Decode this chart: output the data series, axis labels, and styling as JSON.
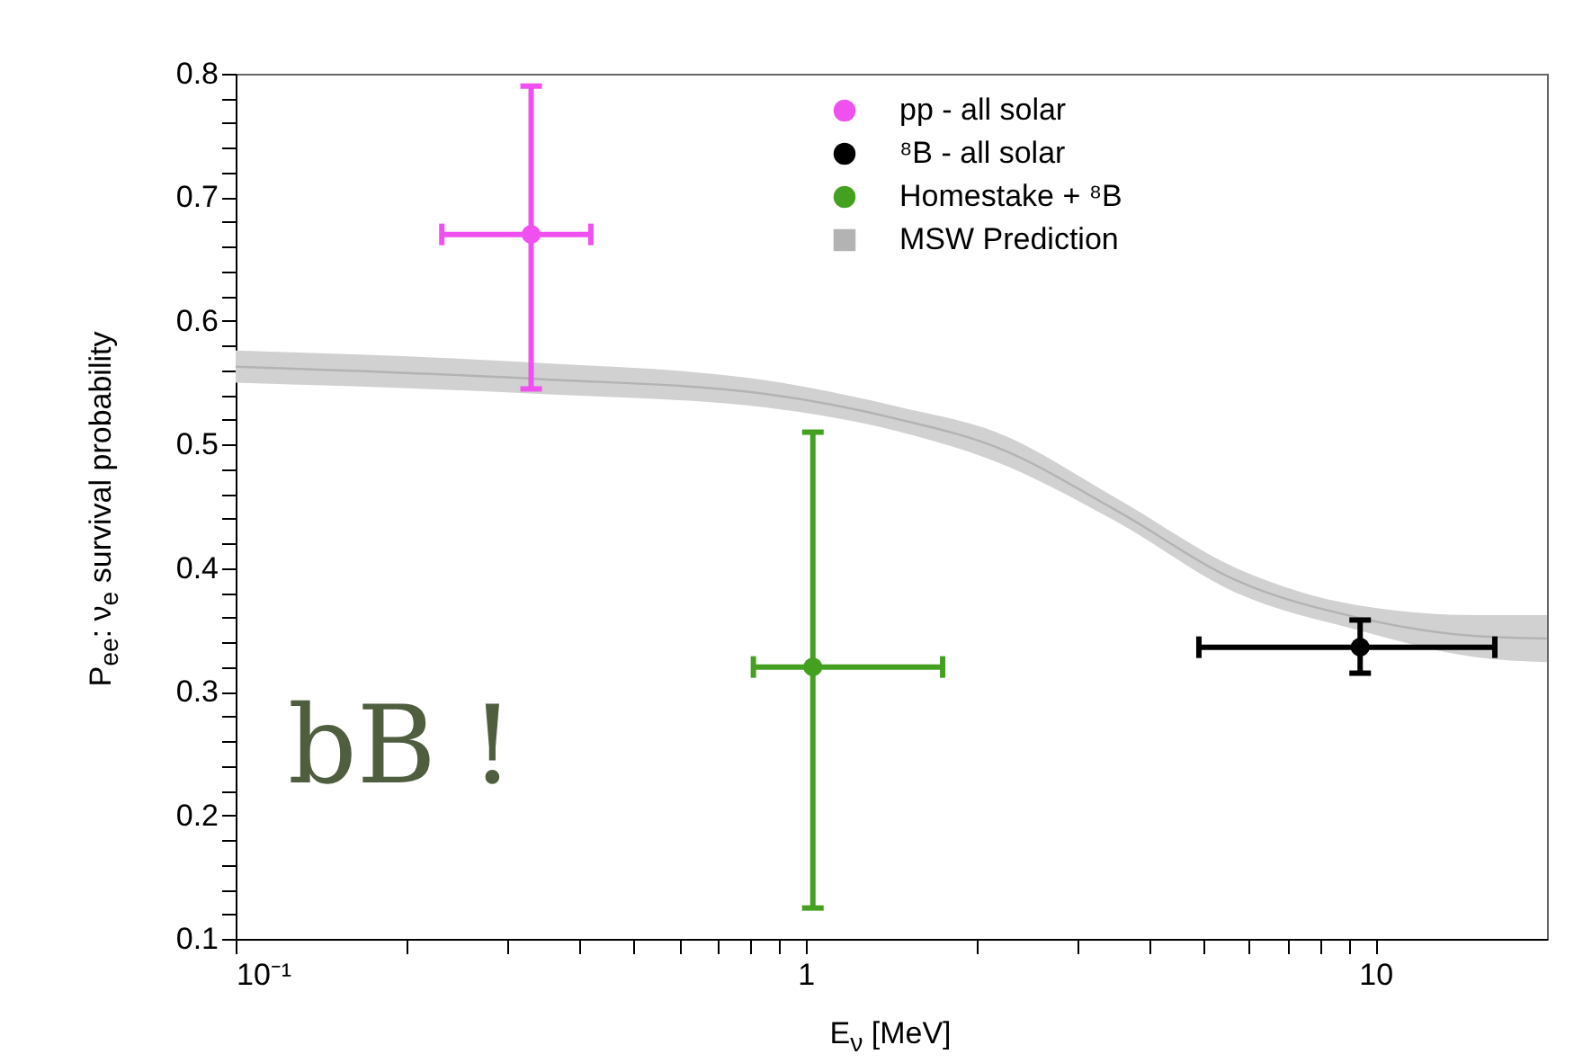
{
  "chart_data": {
    "type": "scatter",
    "xlabel": "E$_{ν}$ [MeV]",
    "ylabel": "P$_{ee}$:  ν$_{e}$ survival probability",
    "log": "x",
    "xlim": [
      0.1,
      20
    ],
    "ylim": [
      0.1,
      0.8
    ],
    "xticks": [
      {
        "value": 0.1,
        "label": "10⁻¹"
      },
      {
        "value": 0.2,
        "label": null
      },
      {
        "value": 0.3,
        "label": null
      },
      {
        "value": 0.4,
        "label": null
      },
      {
        "value": 0.5,
        "label": null
      },
      {
        "value": 0.6,
        "label": null
      },
      {
        "value": 0.7,
        "label": null
      },
      {
        "value": 0.8,
        "label": null
      },
      {
        "value": 0.9,
        "label": null
      },
      1,
      {
        "value": 2,
        "label": null
      },
      {
        "value": 3,
        "label": null
      },
      {
        "value": 4,
        "label": null
      },
      {
        "value": 5,
        "label": null
      },
      {
        "value": 6,
        "label": null
      },
      {
        "value": 7,
        "label": null
      },
      {
        "value": 8,
        "label": null
      },
      {
        "value": 9,
        "label": null
      },
      10
    ],
    "yticks": [
      0.1,
      {
        "value": 0.12,
        "label": null
      },
      {
        "value": 0.14,
        "label": null
      },
      {
        "value": 0.16,
        "label": null
      },
      {
        "value": 0.18,
        "label": null
      },
      0.2,
      {
        "value": 0.22,
        "label": null
      },
      {
        "value": 0.24,
        "label": null
      },
      {
        "value": 0.26,
        "label": null
      },
      {
        "value": 0.28,
        "label": null
      },
      0.3,
      {
        "value": 0.32,
        "label": null
      },
      {
        "value": 0.34,
        "label": null
      },
      {
        "value": 0.36,
        "label": null
      },
      {
        "value": 0.38,
        "label": null
      },
      0.4,
      {
        "value": 0.42,
        "label": null
      },
      {
        "value": 0.44,
        "label": null
      },
      {
        "value": 0.46,
        "label": null
      },
      {
        "value": 0.48,
        "label": null
      },
      0.5,
      {
        "value": 0.52,
        "label": null
      },
      {
        "value": 0.54,
        "label": null
      },
      {
        "value": 0.56,
        "label": null
      },
      {
        "value": 0.58,
        "label": null
      },
      0.6,
      {
        "value": 0.62,
        "label": null
      },
      {
        "value": 0.64,
        "label": null
      },
      {
        "value": 0.66,
        "label": null
      },
      {
        "value": 0.68,
        "label": null
      },
      0.7,
      {
        "value": 0.72,
        "label": null
      },
      {
        "value": 0.74,
        "label": null
      },
      {
        "value": 0.76,
        "label": null
      },
      {
        "value": 0.78,
        "label": null
      },
      0.8
    ],
    "marker": "circle",
    "legend": "top right",
    "annotations": [
      "bB !"
    ],
    "series": [
      {
        "name": "pp - all solar",
        "color": "#f050f0",
        "x": [
          0.33
        ],
        "values": [
          0.67
        ],
        "errors": [
          [
            0.545,
            0.79
          ]
        ],
        "xerrors": [
          [
            0.23,
            0.42
          ]
        ]
      },
      {
        "name": "⁸B - all solar",
        "color": "#000000",
        "x": [
          9.4
        ],
        "values": [
          0.336
        ],
        "errors": [
          [
            0.315,
            0.358
          ]
        ],
        "xerrors": [
          [
            4.9,
            16.2
          ]
        ]
      },
      {
        "name": "Homestake + ⁸B",
        "color": "#44a020",
        "x": [
          1.03
        ],
        "values": [
          0.32
        ],
        "errors": [
          [
            0.125,
            0.51
          ]
        ],
        "xerrors": [
          [
            0.81,
            1.74
          ]
        ]
      },
      {
        "name": "MSW Prediction",
        "type": "line",
        "marker": "none",
        "color": "#b3b3b3",
        "x": [
          0.1,
          0.34,
          0.85,
          1.47,
          2.16,
          3.5,
          5.7,
          9.3,
          15,
          20
        ],
        "values": [
          0.563,
          0.553,
          0.541,
          0.52,
          0.498,
          0.447,
          0.39,
          0.36,
          0.345,
          0.343
        ],
        "lower": [
          0.55,
          0.541,
          0.53,
          0.51,
          0.486,
          0.438,
          0.38,
          0.35,
          0.328,
          0.324
        ],
        "upper": [
          0.576,
          0.566,
          0.552,
          0.53,
          0.51,
          0.457,
          0.4,
          0.37,
          0.362,
          0.362
        ]
      }
    ]
  }
}
